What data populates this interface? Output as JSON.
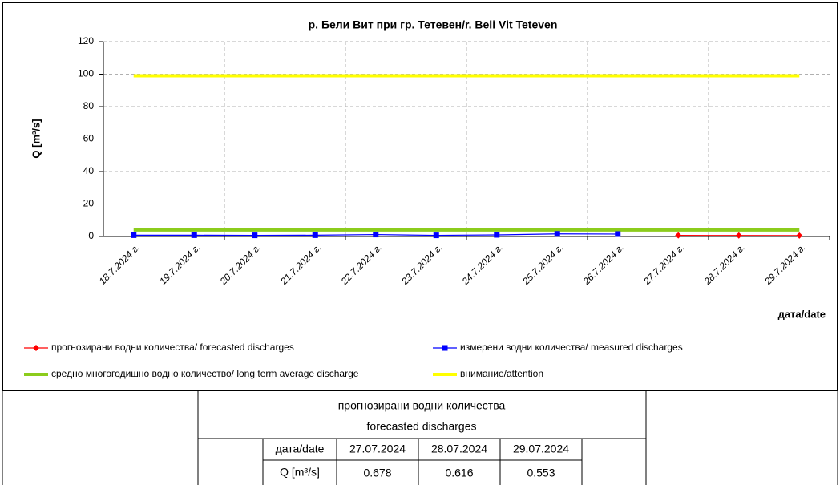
{
  "chart_data": {
    "type": "line",
    "title": "р. Бели Вит при гр. Тетевен/r. Beli Vit Teteven",
    "ylabel": "Q [m³/s]",
    "xlabel": "дата/date",
    "categories": [
      "18.7.2024 г.",
      "19.7.2024 г.",
      "20.7.2024 г.",
      "21.7.2024 г.",
      "22.7.2024 г.",
      "23.7.2024 г.",
      "24.7.2024 г.",
      "25.7.2024 г.",
      "26.7.2024 г.",
      "27.7.2024 г.",
      "28.7.2024 г.",
      "29.7.2024 г."
    ],
    "series": [
      {
        "name": "прогнозирани водни количества/ forecasted discharges",
        "color": "#ff0000",
        "marker": "diamond",
        "values": [
          null,
          null,
          null,
          null,
          null,
          null,
          null,
          null,
          null,
          0.678,
          0.616,
          0.553
        ]
      },
      {
        "name": "измерени водни количества/ measured discharges",
        "color": "#0000ff",
        "marker": "square",
        "values": [
          0.8,
          0.8,
          0.7,
          0.8,
          1.2,
          0.7,
          1.0,
          1.6,
          1.5,
          null,
          null,
          null
        ]
      },
      {
        "name": "средно многогодишно водно количество/ long term average discharge",
        "color": "#8ccc1c",
        "values": [
          4,
          4,
          4,
          4,
          4,
          4,
          4,
          4,
          4,
          4,
          4,
          4
        ]
      },
      {
        "name": "внимание/attention",
        "color": "#ffff00",
        "values": [
          99,
          99,
          99,
          99,
          99,
          99,
          99,
          99,
          99,
          99,
          99,
          99
        ]
      }
    ],
    "ylim": [
      0,
      120
    ],
    "yticks": [
      0,
      20,
      40,
      60,
      80,
      100,
      120
    ],
    "grid": true
  },
  "table": {
    "title": [
      "прогнозирани водни количества",
      "forecasted discharges"
    ],
    "date_label": "дата/date",
    "value_label": "Q [m³/s]",
    "dates": [
      "27.07.2024",
      "28.07.2024",
      "29.07.2024"
    ]
  }
}
